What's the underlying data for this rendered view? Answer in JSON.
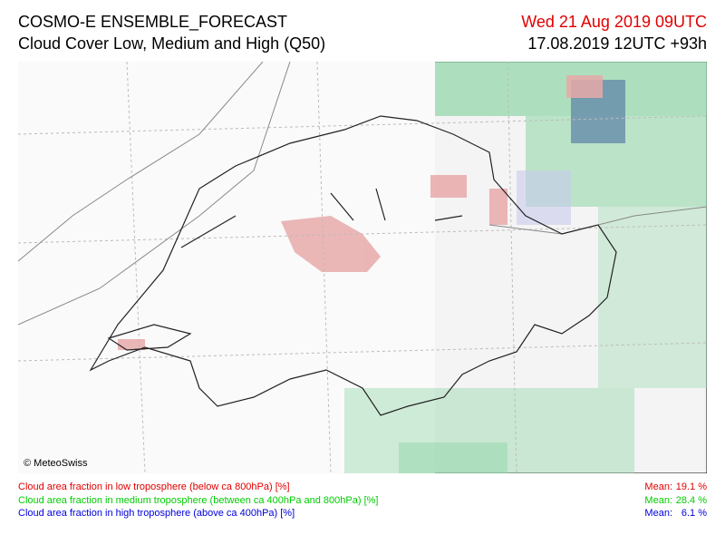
{
  "header": {
    "title": "COSMO-E ENSEMBLE_FORECAST",
    "subtitle": "Cloud Cover Low, Medium and High (Q50)",
    "valid_time": "Wed 21 Aug 2019 09UTC",
    "run": "17.08.2019 12UTC +93h"
  },
  "map": {
    "credit": "© MeteoSwiss"
  },
  "legend": [
    {
      "label": "Cloud area fraction in low troposphere (below ca 800hPa) [%]",
      "mean_label": "Mean:",
      "mean": "19.1 %"
    },
    {
      "label": "Cloud area fraction in medium troposphere (between ca 400hPa and 800hPa) [%]",
      "mean_label": "Mean:",
      "mean": "28.4 %"
    },
    {
      "label": "Cloud area fraction in high troposphere (above ca 400hPa) [%]",
      "mean_label": "Mean:",
      "mean": "6.1 %"
    }
  ]
}
